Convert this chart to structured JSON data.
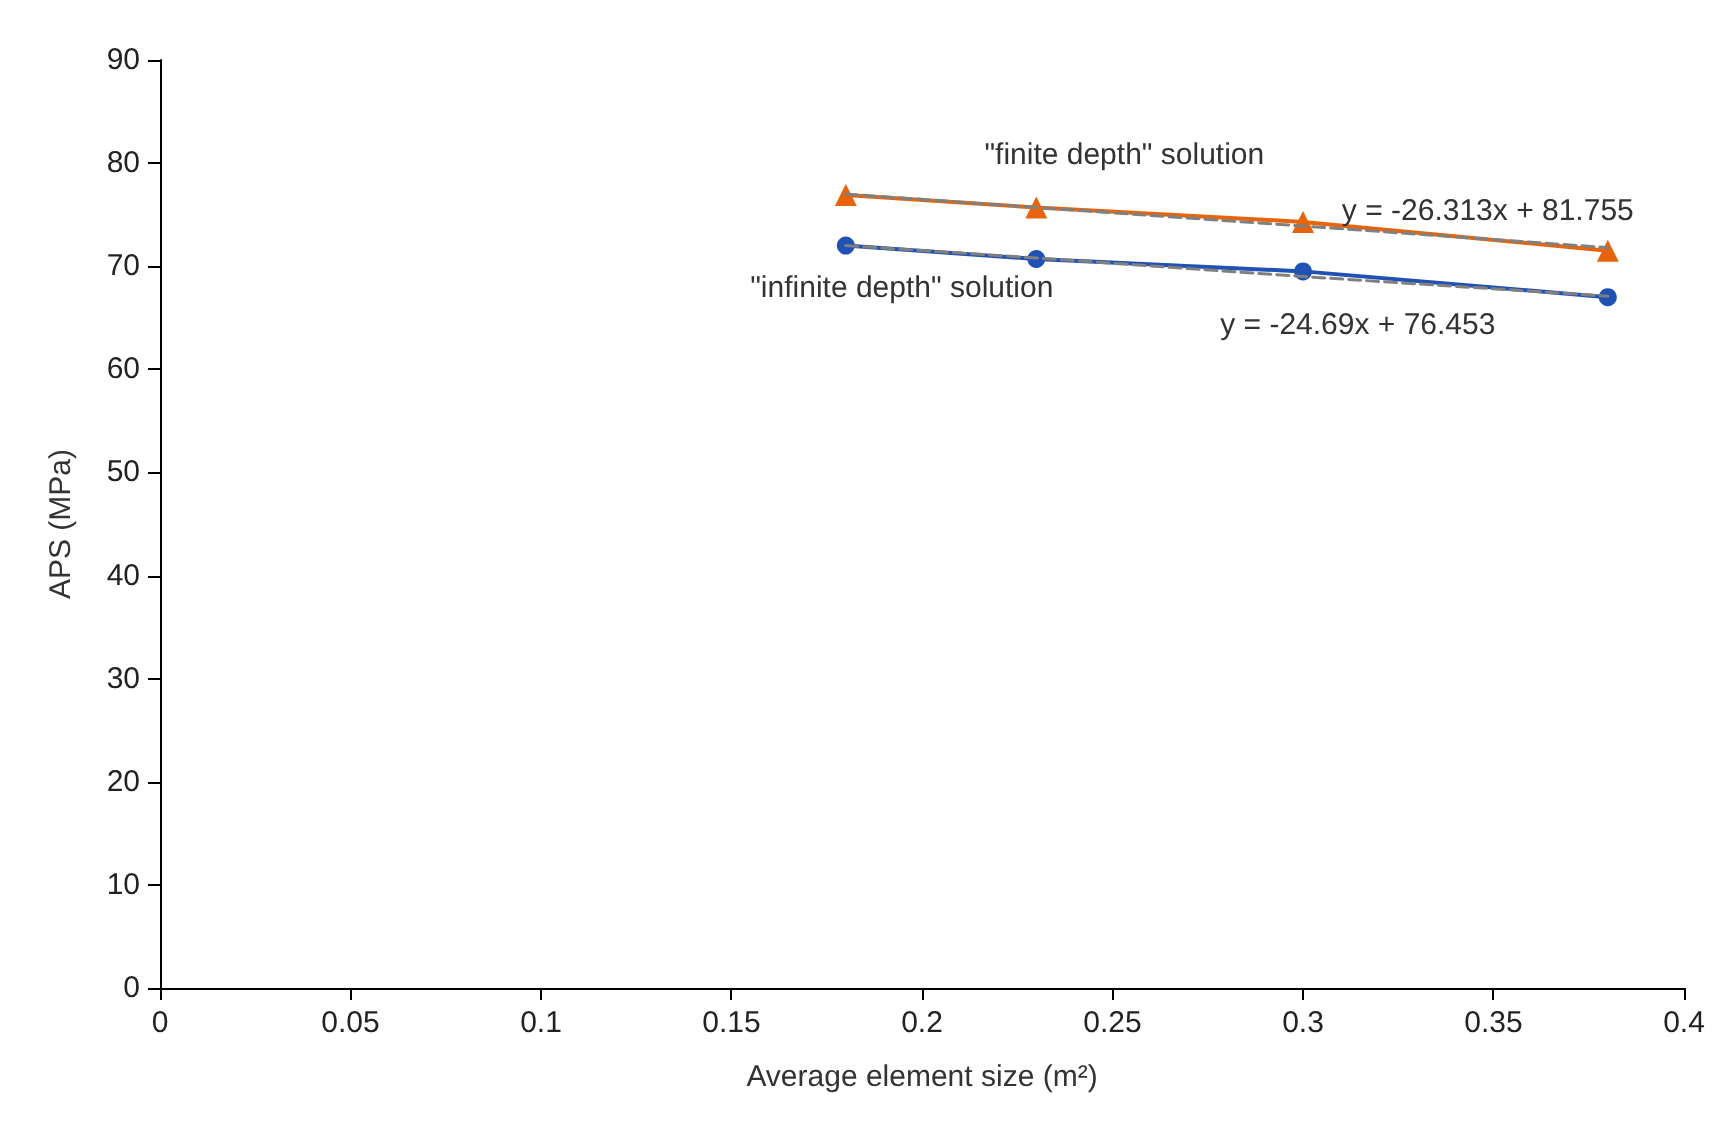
{
  "chart_data": {
    "type": "line",
    "xlabel": "Average element size (m²)",
    "ylabel": "APS (MPa)",
    "x": [
      0.18,
      0.23,
      0.3,
      0.38
    ],
    "series": [
      {
        "name": "\"finite depth\" solution",
        "color": "#e8640c",
        "marker": "triangle",
        "values": [
          76.9,
          75.7,
          74.3,
          71.5
        ]
      },
      {
        "name": "\"infinite depth\" solution",
        "color": "#2052b5",
        "marker": "circle",
        "values": [
          72.0,
          70.7,
          69.5,
          67.0
        ]
      },
      {
        "name": "y = -26.313x + 81.755",
        "type": "line",
        "color": "#808080",
        "line_style": "dashed",
        "marker": "none",
        "values": [
          77.0,
          75.7,
          73.9,
          71.8
        ]
      },
      {
        "name": "y = -24.69x + 76.453",
        "type": "line",
        "color": "#808080",
        "line_style": "dashed",
        "marker": "none",
        "values": [
          72.0,
          70.8,
          69.0,
          67.1
        ]
      }
    ],
    "xlim": [
      0,
      0.4
    ],
    "xticks": [
      0,
      0.05,
      0.1,
      0.15,
      0.2,
      0.25,
      0.3,
      0.35,
      0.4
    ],
    "ylim": [
      0,
      90
    ],
    "yticks": [
      0,
      10,
      20,
      30,
      40,
      50,
      60,
      70,
      80,
      90
    ],
    "grid": false,
    "legend": false
  }
}
